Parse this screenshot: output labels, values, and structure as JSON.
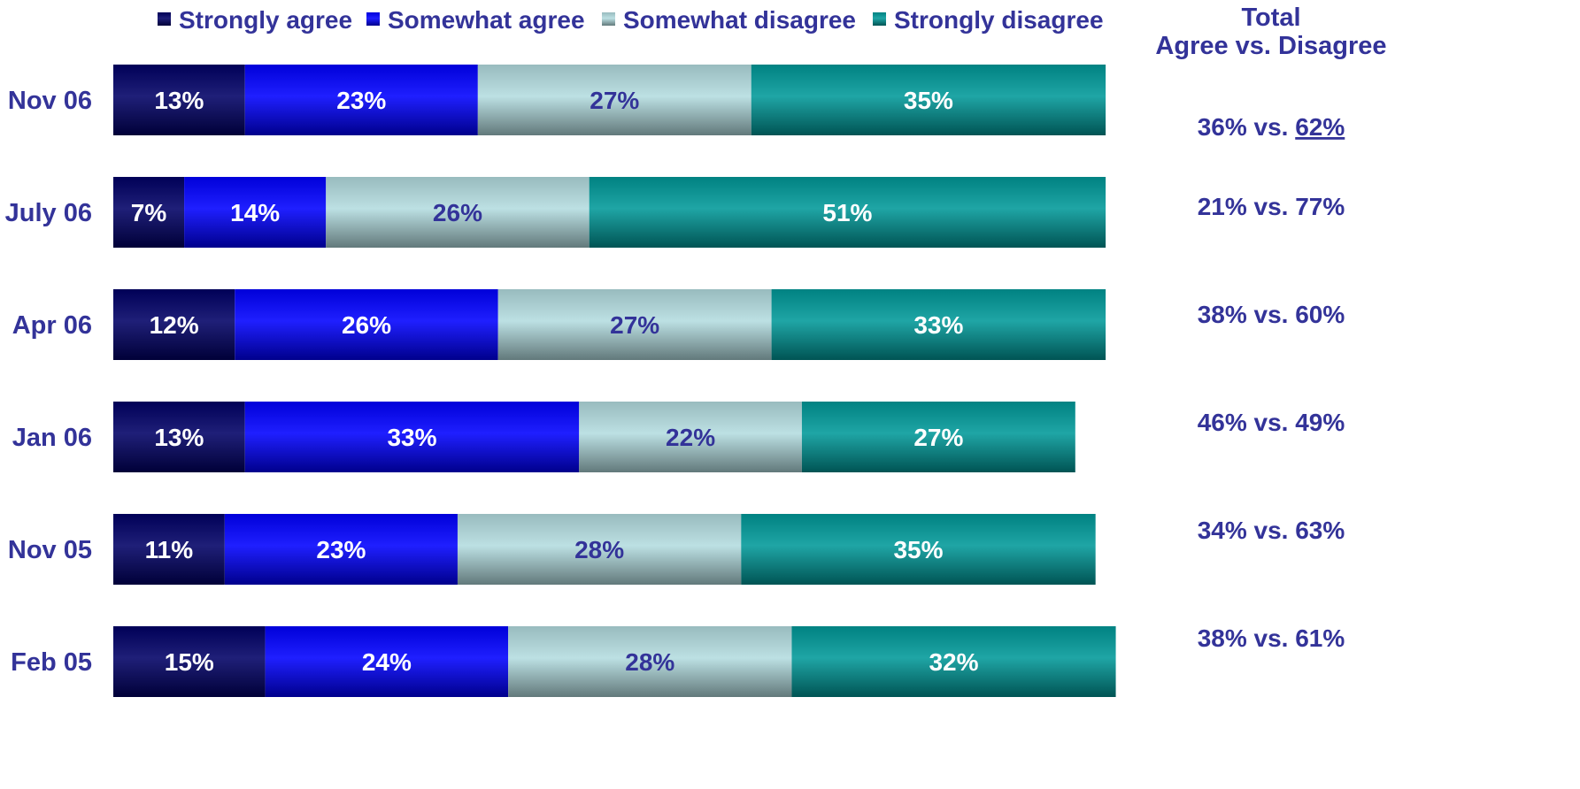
{
  "chart_data": {
    "type": "bar",
    "orientation": "horizontal",
    "stacked": true,
    "categories": [
      "Nov 06",
      "July 06",
      "Apr 06",
      "Jan 06",
      "Nov 05",
      "Feb 05"
    ],
    "series": [
      {
        "name": "Strongly agree",
        "values": [
          13,
          7,
          12,
          13,
          11,
          15
        ],
        "color": "#000066",
        "label_color": "#ffffff"
      },
      {
        "name": "Somewhat agree",
        "values": [
          23,
          14,
          26,
          33,
          23,
          24
        ],
        "color": "#0000ff",
        "label_color": "#ffffff"
      },
      {
        "name": "Somewhat disagree",
        "values": [
          27,
          26,
          27,
          22,
          28,
          28
        ],
        "color": "#b3dcdf",
        "label_color": "#333399"
      },
      {
        "name": "Strongly disagree",
        "values": [
          35,
          51,
          33,
          27,
          35,
          32
        ],
        "color": "#009999",
        "label_color": "#ffffff"
      }
    ],
    "value_suffix": "%",
    "legend_position": "top",
    "total_header": [
      "Total",
      "Agree vs. Disagree"
    ],
    "totals": [
      {
        "agree": "36%",
        "separator": " vs. ",
        "disagree": "62%",
        "disagree_underlined": true
      },
      {
        "agree": "21%",
        "separator": " vs. ",
        "disagree": "77%"
      },
      {
        "agree": "38%",
        "separator": " vs. ",
        "disagree": "60%"
      },
      {
        "agree": "46%",
        "separator": " vs. ",
        "disagree": "49%"
      },
      {
        "agree": "34%",
        "separator": " vs. ",
        "disagree": "63%"
      },
      {
        "agree": "38%",
        "separator": " vs. ",
        "disagree": "61%"
      }
    ],
    "xlim": [
      0,
      100
    ],
    "grid": false
  }
}
